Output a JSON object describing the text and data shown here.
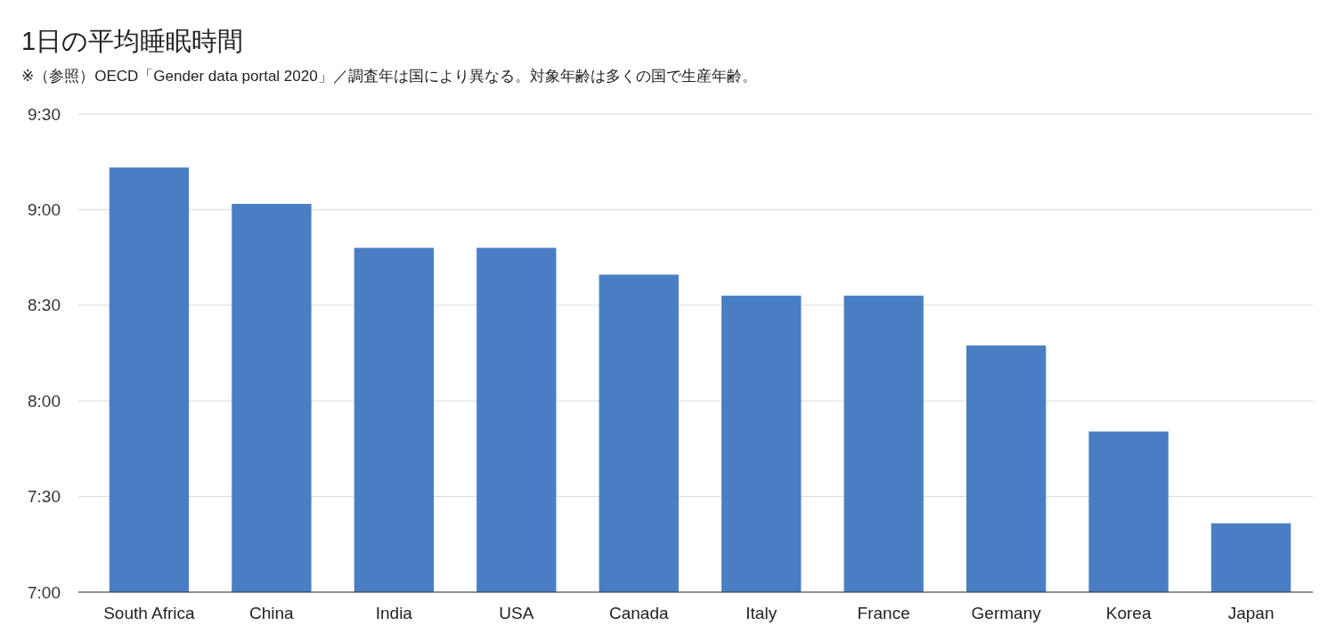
{
  "chart_data": {
    "type": "bar",
    "title": "1日の平均睡眠時間",
    "subtitle": "※（参照）OECD「Gender data portal 2020」／調査年は国により異なる。対象年齢は多くの国で生産年齢。",
    "categories": [
      "South Africa",
      "China",
      "India",
      "USA",
      "Canada",
      "Italy",
      "France",
      "Germany",
      "Korea",
      "Japan"
    ],
    "values": [
      9.22,
      9.03,
      8.8,
      8.8,
      8.66,
      8.55,
      8.55,
      8.29,
      7.84,
      7.36
    ],
    "color": "#4a7ec4",
    "ylim": [
      7,
      9.5
    ],
    "yticks": [
      {
        "value": 7,
        "label": "7:00"
      },
      {
        "value": 7.5,
        "label": "7:30"
      },
      {
        "value": 8,
        "label": "8:00"
      },
      {
        "value": 8.5,
        "label": "8:30"
      },
      {
        "value": 9,
        "label": "9:00"
      },
      {
        "value": 9.5,
        "label": "9:30"
      }
    ],
    "grid": true
  }
}
